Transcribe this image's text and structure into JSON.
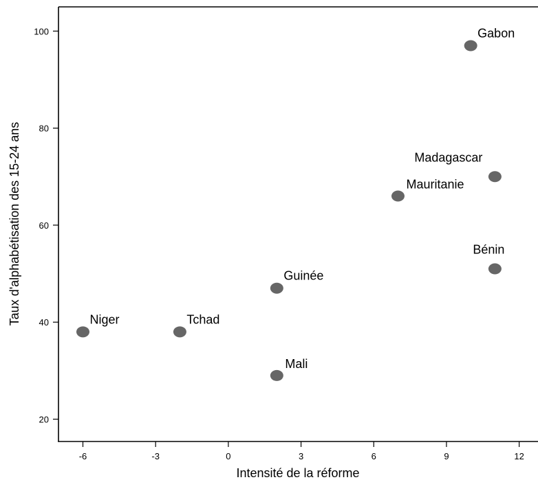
{
  "chart_data": {
    "type": "scatter",
    "xlabel": "Intensité de la réforme",
    "ylabel": "Taux d'alphabétisation des 15-24 ans",
    "xlim": [
      -7,
      13
    ],
    "ylim": [
      15,
      105
    ],
    "xticks": [
      -6,
      -3,
      0,
      3,
      6,
      9,
      12
    ],
    "yticks": [
      20,
      40,
      60,
      80,
      100
    ],
    "grid": false,
    "marker_color": "#666666",
    "points": [
      {
        "label": "Gabon",
        "x": 10,
        "y": 97
      },
      {
        "label": "Madagascar",
        "x": 11,
        "y": 70
      },
      {
        "label": "Mauritanie",
        "x": 7,
        "y": 66
      },
      {
        "label": "Bénin",
        "x": 11,
        "y": 51
      },
      {
        "label": "Guinée",
        "x": 2,
        "y": 47
      },
      {
        "label": "Niger",
        "x": -6,
        "y": 38
      },
      {
        "label": "Tchad",
        "x": -2,
        "y": 38
      },
      {
        "label": "Mali",
        "x": 2,
        "y": 29
      }
    ]
  }
}
